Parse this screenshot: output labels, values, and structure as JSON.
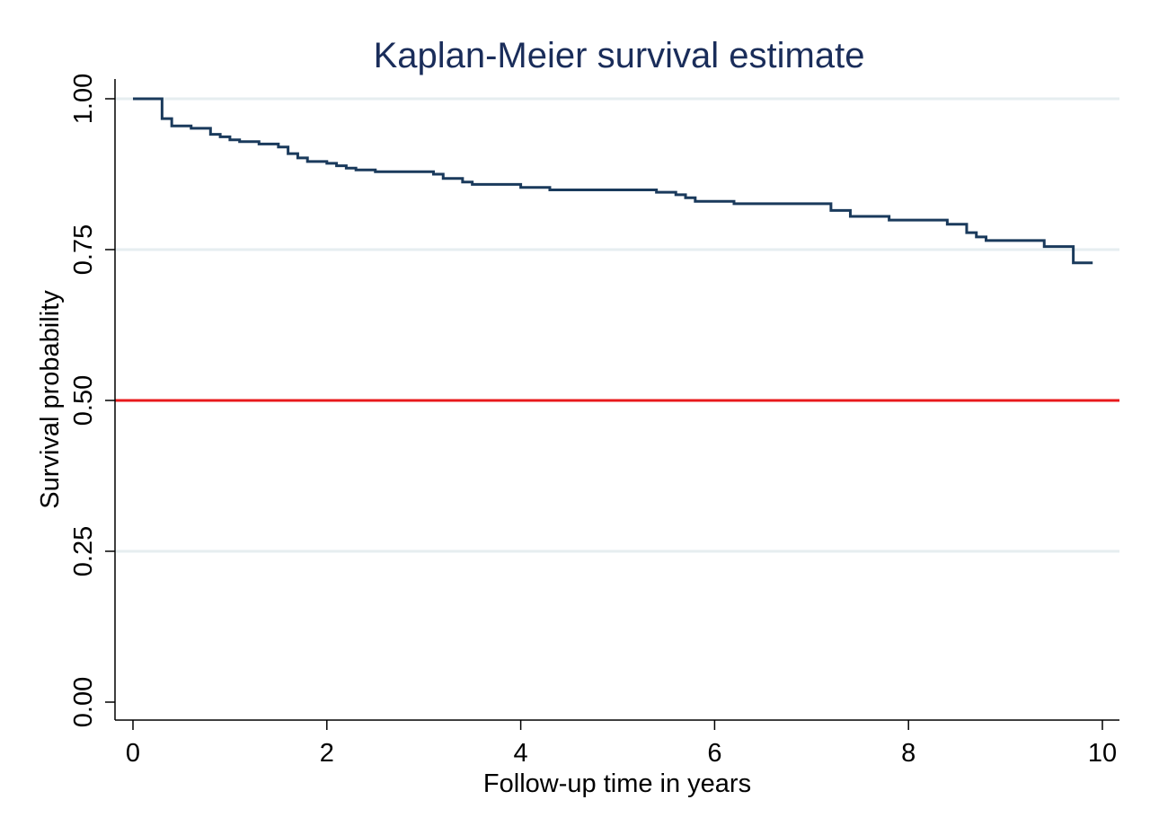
{
  "chart_data": {
    "type": "line",
    "title": "Kaplan-Meier survival estimate",
    "xlabel": "Follow-up time in years",
    "ylabel": "Survival probability",
    "xlim": [
      0,
      10
    ],
    "ylim": [
      0,
      1
    ],
    "x_ticks": [
      0,
      2,
      4,
      6,
      8,
      10
    ],
    "x_tick_labels": [
      "0",
      "2",
      "4",
      "6",
      "8",
      "10"
    ],
    "y_ticks": [
      0,
      0.25,
      0.5,
      0.75,
      1
    ],
    "y_tick_labels": [
      "0.00",
      "0.25",
      "0.50",
      "0.75",
      "1.00"
    ],
    "grid": true,
    "reference_line": {
      "y": 0.5,
      "color": "#e8191c"
    },
    "series": [
      {
        "step": "post",
        "color": "#1a3a5c",
        "x": [
          0,
          0.3,
          0.4,
          0.6,
          0.8,
          0.9,
          1.0,
          1.1,
          1.3,
          1.5,
          1.6,
          1.7,
          1.8,
          2.0,
          2.1,
          2.2,
          2.3,
          2.5,
          3.1,
          3.2,
          3.4,
          3.5,
          4.0,
          4.3,
          5.4,
          5.6,
          5.7,
          5.8,
          6.2,
          7.2,
          7.4,
          7.8,
          8.4,
          8.6,
          8.7,
          8.8,
          9.4,
          9.7,
          9.9
        ],
        "y": [
          1.0,
          0.967,
          0.955,
          0.951,
          0.941,
          0.937,
          0.932,
          0.929,
          0.925,
          0.92,
          0.909,
          0.902,
          0.896,
          0.893,
          0.889,
          0.885,
          0.882,
          0.879,
          0.875,
          0.868,
          0.862,
          0.858,
          0.853,
          0.849,
          0.845,
          0.841,
          0.836,
          0.83,
          0.826,
          0.815,
          0.805,
          0.799,
          0.792,
          0.778,
          0.771,
          0.765,
          0.755,
          0.728,
          0.728
        ]
      }
    ]
  }
}
